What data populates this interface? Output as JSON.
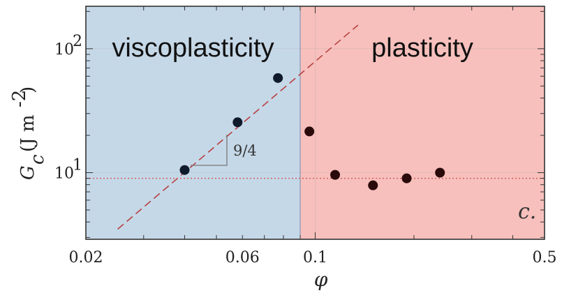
{
  "chart_data": {
    "type": "scatter",
    "xlabel": "φ",
    "ylabel": {
      "symbol": "G",
      "subscript": "c",
      "unit": "(J m",
      "unit_exp": "-2",
      "unit_close": ")"
    },
    "xscale": "log",
    "yscale": "log",
    "xlim": [
      0.02,
      0.5
    ],
    "ylim": [
      2.9,
      220
    ],
    "x_tick_labels": [
      {
        "value": 0.02,
        "label": "0.02"
      },
      {
        "value": 0.06,
        "label": "0.06"
      },
      {
        "value": 0.1,
        "label": "0.1"
      },
      {
        "value": 0.5,
        "label": "0.5"
      }
    ],
    "y_tick_labels": [
      {
        "value": 10,
        "base": "10",
        "exp": "1"
      },
      {
        "value": 100,
        "base": "10",
        "exp": "2"
      }
    ],
    "regions": [
      {
        "name": "viscoplasticity",
        "x_range": [
          0.02,
          0.09
        ],
        "color": "#c5d8e8"
      },
      {
        "name": "plasticity",
        "x_range": [
          0.09,
          0.5
        ],
        "color": "#f7c0bc"
      }
    ],
    "series": [
      {
        "color": "#0f1a2b",
        "x": [
          0.04,
          0.058,
          0.077
        ],
        "y": [
          10.5,
          25.5,
          58
        ]
      },
      {
        "color": "#2a0a0a",
        "x": [
          0.096,
          0.115,
          0.15,
          0.19,
          0.24
        ],
        "y": [
          21.5,
          9.6,
          7.9,
          9.0,
          10.0
        ]
      }
    ],
    "power_law_fit": {
      "exponent": 2.25,
      "x": [
        0.025,
        0.135
      ],
      "y": [
        3.5,
        155
      ],
      "color": "#b84040",
      "style": "dashed"
    },
    "plateau_line": {
      "y": 9.0,
      "color": "#d06060",
      "style": "dotted"
    },
    "slope_annotation": {
      "label": "9/4"
    },
    "panel_label": "c."
  }
}
